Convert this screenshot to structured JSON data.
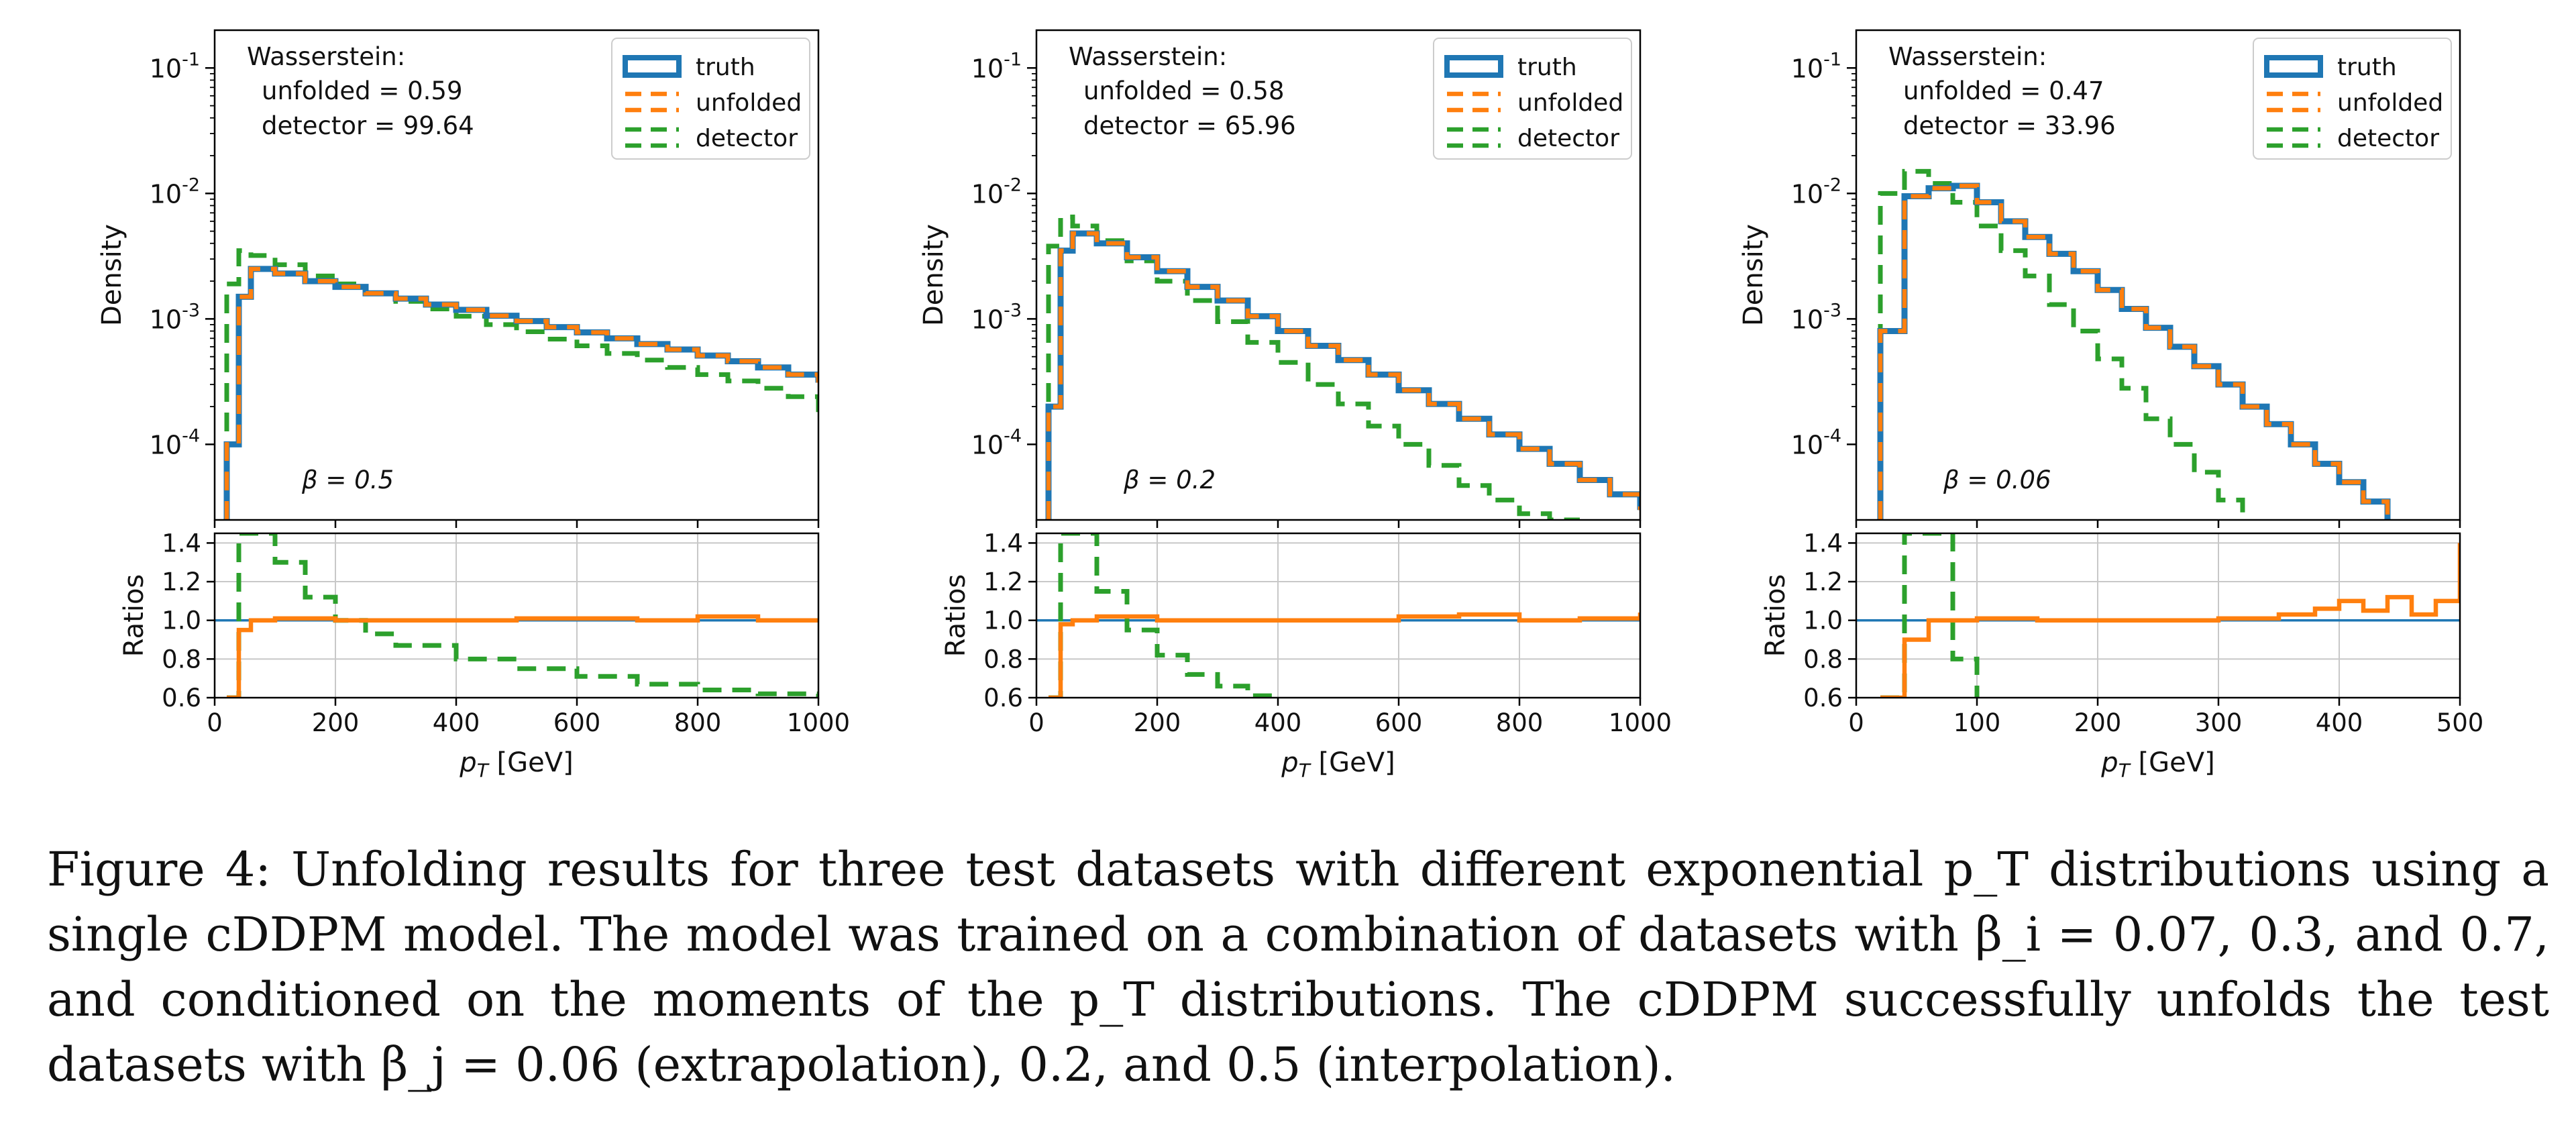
{
  "colors": {
    "truth": "#1f77b4",
    "unfolded": "#ff7f0e",
    "detector": "#2ca02c",
    "grid": "#c8c8c8",
    "axis": "#000000"
  },
  "chart_data": [
    {
      "type": "line",
      "panel": "left",
      "beta_label": "β = 0.5",
      "wasserstein_title": "Wasserstein:",
      "wasserstein_unfolded": "unfolded = 0.59",
      "wasserstein_detector": "detector = 99.64",
      "xlabel": "p_T [GeV]",
      "ylabel": "Density",
      "ratio_ylabel": "Ratios",
      "xlim": [
        0,
        1000
      ],
      "ylim_log": [
        2.5e-05,
        0.2
      ],
      "ratio_ylim": [
        0.6,
        1.45
      ],
      "x_ticks": [
        0,
        200,
        400,
        600,
        800,
        1000
      ],
      "y_ticks": [
        "10^-4",
        "10^-3",
        "10^-2",
        "10^-1"
      ],
      "ratio_ticks": [
        "0.6",
        "0.8",
        "1.0",
        "1.2",
        "1.4"
      ],
      "legend": [
        "truth",
        "unfolded",
        "detector"
      ],
      "truth": {
        "x": [
          20,
          40,
          60,
          100,
          150,
          200,
          250,
          300,
          350,
          400,
          450,
          500,
          550,
          600,
          650,
          700,
          750,
          800,
          850,
          900,
          950,
          1000
        ],
        "y": [
          0.0001,
          0.0015,
          0.0025,
          0.0023,
          0.002,
          0.0018,
          0.0016,
          0.00145,
          0.0013,
          0.00118,
          0.00106,
          0.00096,
          0.00086,
          0.00078,
          0.0007,
          0.00063,
          0.00057,
          0.00051,
          0.00046,
          0.00041,
          0.00036,
          0.00031
        ]
      },
      "unfolded": {
        "x": [
          20,
          40,
          60,
          100,
          150,
          200,
          250,
          300,
          350,
          400,
          450,
          500,
          550,
          600,
          650,
          700,
          750,
          800,
          850,
          900,
          950,
          1000
        ],
        "y": [
          0.0001,
          0.0015,
          0.0025,
          0.0023,
          0.002,
          0.0018,
          0.0016,
          0.00145,
          0.0013,
          0.00118,
          0.00106,
          0.00096,
          0.00086,
          0.00078,
          0.0007,
          0.00063,
          0.00057,
          0.00051,
          0.00046,
          0.00041,
          0.00036,
          0.00031
        ]
      },
      "detector": {
        "x": [
          20,
          40,
          60,
          100,
          150,
          200,
          250,
          300,
          350,
          400,
          450,
          500,
          550,
          600,
          650,
          700,
          750,
          800,
          850,
          900,
          950,
          1000
        ],
        "y": [
          0.0019,
          0.0035,
          0.0032,
          0.0027,
          0.0022,
          0.0019,
          0.0016,
          0.00138,
          0.0012,
          0.00105,
          0.0009,
          0.00079,
          0.00069,
          0.00061,
          0.00053,
          0.00047,
          0.00041,
          0.00036,
          0.00032,
          0.00028,
          0.00024,
          0.00018
        ]
      },
      "ratio_unfolded": {
        "x": [
          20,
          40,
          60,
          100,
          200,
          300,
          400,
          500,
          600,
          700,
          800,
          900,
          1000
        ],
        "y": [
          0.6,
          0.95,
          1.0,
          1.01,
          1.0,
          1.0,
          1.0,
          1.01,
          1.01,
          1.0,
          1.02,
          1.0,
          1.0
        ]
      },
      "ratio_detector": {
        "x": [
          20,
          40,
          60,
          100,
          150,
          200,
          250,
          300,
          400,
          500,
          600,
          700,
          800,
          900,
          1000
        ],
        "y": [
          0.6,
          1.45,
          1.45,
          1.3,
          1.12,
          1.0,
          0.93,
          0.87,
          0.8,
          0.75,
          0.71,
          0.67,
          0.64,
          0.62,
          0.6
        ]
      }
    },
    {
      "type": "line",
      "panel": "middle",
      "beta_label": "β = 0.2",
      "wasserstein_title": "Wasserstein:",
      "wasserstein_unfolded": "unfolded = 0.58",
      "wasserstein_detector": "detector = 65.96",
      "xlabel": "p_T [GeV]",
      "ylabel": "Density",
      "ratio_ylabel": "Ratios",
      "xlim": [
        0,
        1000
      ],
      "ylim_log": [
        2.5e-05,
        0.2
      ],
      "ratio_ylim": [
        0.6,
        1.45
      ],
      "x_ticks": [
        0,
        200,
        400,
        600,
        800,
        1000
      ],
      "y_ticks": [
        "10^-4",
        "10^-3",
        "10^-2",
        "10^-1"
      ],
      "ratio_ticks": [
        "0.6",
        "0.8",
        "1.0",
        "1.2",
        "1.4"
      ],
      "legend": [
        "truth",
        "unfolded",
        "detector"
      ],
      "truth": {
        "x": [
          20,
          40,
          60,
          100,
          150,
          200,
          250,
          300,
          350,
          400,
          450,
          500,
          550,
          600,
          650,
          700,
          750,
          800,
          850,
          900,
          950,
          1000
        ],
        "y": [
          0.0002,
          0.0035,
          0.0048,
          0.004,
          0.0031,
          0.0024,
          0.0018,
          0.0014,
          0.00105,
          0.0008,
          0.00061,
          0.00047,
          0.00036,
          0.00027,
          0.00021,
          0.00016,
          0.00012,
          9.2e-05,
          7e-05,
          5.2e-05,
          4e-05,
          3e-05
        ]
      },
      "unfolded": {
        "x": [
          20,
          40,
          60,
          100,
          150,
          200,
          250,
          300,
          350,
          400,
          450,
          500,
          550,
          600,
          650,
          700,
          750,
          800,
          850,
          900,
          950,
          1000
        ],
        "y": [
          0.0002,
          0.0035,
          0.0048,
          0.004,
          0.0031,
          0.0024,
          0.0018,
          0.0014,
          0.00105,
          0.0008,
          0.00061,
          0.00047,
          0.00036,
          0.00027,
          0.00021,
          0.00016,
          0.00012,
          9.2e-05,
          7e-05,
          5.2e-05,
          4e-05,
          3e-05
        ]
      },
      "detector": {
        "x": [
          20,
          40,
          60,
          100,
          150,
          200,
          250,
          300,
          350,
          400,
          450,
          500,
          550,
          600,
          650,
          700,
          750,
          800,
          850,
          900
        ],
        "y": [
          0.0038,
          0.0065,
          0.0055,
          0.0042,
          0.0029,
          0.002,
          0.0014,
          0.00095,
          0.00065,
          0.00045,
          0.0003,
          0.00021,
          0.00014,
          0.0001,
          6.8e-05,
          4.7e-05,
          3.6e-05,
          2.8e-05,
          2.5e-05,
          2.5e-05
        ]
      },
      "ratio_unfolded": {
        "x": [
          20,
          40,
          60,
          100,
          200,
          300,
          400,
          500,
          600,
          700,
          800,
          900,
          1000
        ],
        "y": [
          0.6,
          0.98,
          1.0,
          1.02,
          1.0,
          1.0,
          1.0,
          1.0,
          1.02,
          1.03,
          1.0,
          1.01,
          1.04
        ]
      },
      "ratio_detector": {
        "x": [
          20,
          40,
          60,
          100,
          150,
          200,
          250,
          300,
          350,
          400
        ],
        "y": [
          0.6,
          1.45,
          1.45,
          1.15,
          0.95,
          0.82,
          0.72,
          0.66,
          0.61,
          0.6
        ]
      }
    },
    {
      "type": "line",
      "panel": "right",
      "beta_label": "β = 0.06",
      "wasserstein_title": "Wasserstein:",
      "wasserstein_unfolded": "unfolded = 0.47",
      "wasserstein_detector": "detector = 33.96",
      "xlabel": "p_T [GeV]",
      "ylabel": "Density",
      "ratio_ylabel": "Ratios",
      "xlim": [
        0,
        500
      ],
      "ylim_log": [
        2.5e-05,
        0.2
      ],
      "ratio_ylim": [
        0.6,
        1.45
      ],
      "x_ticks": [
        0,
        100,
        200,
        300,
        400,
        500
      ],
      "y_ticks": [
        "10^-4",
        "10^-3",
        "10^-2",
        "10^-1"
      ],
      "ratio_ticks": [
        "0.6",
        "0.8",
        "1.0",
        "1.2",
        "1.4"
      ],
      "legend": [
        "truth",
        "unfolded",
        "detector"
      ],
      "truth": {
        "x": [
          20,
          40,
          60,
          80,
          100,
          120,
          140,
          160,
          180,
          200,
          220,
          240,
          260,
          280,
          300,
          320,
          340,
          360,
          380,
          400,
          420,
          440
        ],
        "y": [
          0.0008,
          0.0095,
          0.011,
          0.0115,
          0.0085,
          0.006,
          0.0045,
          0.0033,
          0.0024,
          0.0017,
          0.0012,
          0.00085,
          0.0006,
          0.00042,
          0.0003,
          0.0002,
          0.000145,
          0.0001,
          7e-05,
          5e-05,
          3.5e-05,
          2.5e-05
        ]
      },
      "unfolded": {
        "x": [
          20,
          40,
          60,
          80,
          100,
          120,
          140,
          160,
          180,
          200,
          220,
          240,
          260,
          280,
          300,
          320,
          340,
          360,
          380,
          400,
          420,
          440
        ],
        "y": [
          0.0008,
          0.0095,
          0.011,
          0.0115,
          0.0085,
          0.006,
          0.0045,
          0.0033,
          0.0024,
          0.0017,
          0.0012,
          0.00085,
          0.0006,
          0.00042,
          0.0003,
          0.0002,
          0.000145,
          0.0001,
          7e-05,
          5e-05,
          3.5e-05,
          2.5e-05
        ]
      },
      "detector": {
        "x": [
          20,
          40,
          60,
          80,
          100,
          120,
          140,
          160,
          180,
          200,
          220,
          240,
          260,
          280,
          300,
          320
        ],
        "y": [
          0.01,
          0.015,
          0.012,
          0.0085,
          0.0055,
          0.0035,
          0.0022,
          0.0013,
          0.0008,
          0.00048,
          0.00028,
          0.00016,
          0.0001,
          6e-05,
          3.6e-05,
          2.5e-05
        ]
      },
      "ratio_unfolded": {
        "x": [
          20,
          40,
          60,
          100,
          150,
          200,
          250,
          300,
          350,
          380,
          400,
          420,
          440,
          460,
          480,
          500
        ],
        "y": [
          0.6,
          0.9,
          1.0,
          1.01,
          1.0,
          1.0,
          1.0,
          1.01,
          1.03,
          1.06,
          1.1,
          1.05,
          1.12,
          1.03,
          1.1,
          1.4
        ]
      },
      "ratio_detector": {
        "x": [
          20,
          40,
          60,
          80,
          100
        ],
        "y": [
          0.6,
          1.45,
          1.45,
          0.8,
          0.6
        ]
      }
    }
  ],
  "caption": "Figure 4: Unfolding results for three test datasets with different exponential p_T distributions using a single cDDPM model. The model was trained on a combination of datasets with β_i = 0.07, 0.3, and 0.7, and conditioned on the moments of the p_T distributions. The cDDPM successfully unfolds the test datasets with β_j = 0.06 (extrapolation), 0.2, and 0.5 (interpolation)."
}
